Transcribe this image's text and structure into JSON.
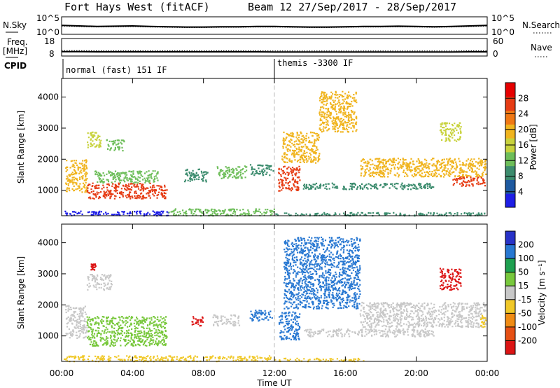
{
  "header": {
    "station": "Fort Hays West (fitACF)",
    "beam_date": "Beam 12  27/Sep/2017 - 28/Sep/2017"
  },
  "summary_panels": {
    "nsky": {
      "left_label": "N.Sky",
      "left_ticks": [
        "10^5",
        "10^0"
      ],
      "right_label": "N.Search",
      "right_ticks": [
        "10^5",
        "10^0"
      ]
    },
    "freq": {
      "left_label_1": "Freq.",
      "left_label_2": "[MHz]",
      "left_ticks": [
        "18",
        "8"
      ],
      "right_label": "Nave",
      "right_ticks": [
        "60",
        "0"
      ]
    },
    "cpid": {
      "label": "CPID",
      "segment_1": "normal (fast) 151 IF",
      "segment_2": "themis -3300 IF",
      "segment_2_start_hour": 12
    }
  },
  "axes": {
    "ylabel": "Slant Range [km]",
    "xlabel": "Time UT",
    "x_ticks": [
      "00:00",
      "04:00",
      "08:00",
      "12:00",
      "16:00",
      "20:00",
      "00:00"
    ],
    "y_ticks": [
      "1000",
      "2000",
      "3000",
      "4000"
    ]
  },
  "colorbars": {
    "power": {
      "label": "Power [dB]",
      "ticks": [
        "4",
        "8",
        "12",
        "16",
        "20",
        "24",
        "28"
      ],
      "colors": [
        "#1e1ee6",
        "#1e5aa0",
        "#3c8c6e",
        "#6ebe5a",
        "#c8d23c",
        "#f0b41e",
        "#f07814",
        "#e63c14",
        "#e60000"
      ]
    },
    "velocity": {
      "label": "Velocity [m s⁻¹]",
      "ticks": [
        "200",
        "100",
        "50",
        "15",
        "-15",
        "-50",
        "-100",
        "-200"
      ],
      "colors": [
        "#2832c8",
        "#2878d2",
        "#1ea050",
        "#78c83c",
        "#c8c8c8",
        "#f0c828",
        "#f08c14",
        "#e65014",
        "#dc1414"
      ]
    }
  },
  "chart_data": {
    "type": "heatmap",
    "x_range_hours": [
      0,
      24
    ],
    "y_range_km": [
      180,
      4600
    ],
    "time_marker_hour": 12,
    "power_regions": [
      {
        "t0": 0.1,
        "t1": 6.0,
        "r0": 200,
        "r1": 350,
        "power": 6
      },
      {
        "t0": 6.0,
        "t1": 12.0,
        "r0": 200,
        "r1": 420,
        "power": 9
      },
      {
        "t0": 12.0,
        "t1": 24.0,
        "r0": 200,
        "r1": 300,
        "power": 5
      },
      {
        "t0": 0.2,
        "t1": 1.4,
        "r0": 950,
        "r1": 2000,
        "power": 20
      },
      {
        "t0": 1.4,
        "t1": 2.2,
        "r0": 2400,
        "r1": 2900,
        "power": 14
      },
      {
        "t0": 2.5,
        "t1": 3.5,
        "r0": 2300,
        "r1": 2650,
        "power": 12
      },
      {
        "t0": 1.4,
        "t1": 5.9,
        "r0": 750,
        "r1": 1250,
        "power": 24
      },
      {
        "t0": 1.8,
        "t1": 5.4,
        "r0": 1250,
        "r1": 1650,
        "power": 14
      },
      {
        "t0": 6.9,
        "t1": 8.2,
        "r0": 1300,
        "r1": 1700,
        "power": 11
      },
      {
        "t0": 8.7,
        "t1": 10.4,
        "r0": 1400,
        "r1": 1800,
        "power": 13
      },
      {
        "t0": 10.6,
        "t1": 11.9,
        "r0": 1500,
        "r1": 1850,
        "power": 12
      },
      {
        "t0": 12.2,
        "t1": 13.4,
        "r0": 1000,
        "r1": 1800,
        "power": 22
      },
      {
        "t0": 12.4,
        "t1": 14.5,
        "r0": 1900,
        "r1": 2900,
        "power": 18
      },
      {
        "t0": 14.5,
        "t1": 16.6,
        "r0": 2900,
        "r1": 4200,
        "power": 16
      },
      {
        "t0": 13.6,
        "t1": 21.0,
        "r0": 1050,
        "r1": 1250,
        "power": 10
      },
      {
        "t0": 16.8,
        "t1": 23.9,
        "r0": 1450,
        "r1": 2050,
        "power": 22
      },
      {
        "t0": 21.3,
        "t1": 22.5,
        "r0": 2600,
        "r1": 3200,
        "power": 15
      },
      {
        "t0": 22.0,
        "t1": 23.9,
        "r0": 1150,
        "r1": 1450,
        "power": 26
      }
    ],
    "velocity_regions": [
      {
        "t0": 0.1,
        "t1": 11.8,
        "r0": 200,
        "r1": 380,
        "velocity": -40
      },
      {
        "t0": 12.0,
        "t1": 17.0,
        "r0": 200,
        "r1": 300,
        "velocity": -30
      },
      {
        "t0": 0.2,
        "t1": 1.4,
        "r0": 950,
        "r1": 2000,
        "velocity": 0
      },
      {
        "t0": 1.4,
        "t1": 2.8,
        "r0": 2500,
        "r1": 3000,
        "velocity": 0
      },
      {
        "t0": 1.6,
        "t1": 1.9,
        "r0": 3150,
        "r1": 3350,
        "velocity": -200
      },
      {
        "t0": 1.4,
        "t1": 5.9,
        "r0": 700,
        "r1": 1650,
        "velocity": 30
      },
      {
        "t0": 7.3,
        "t1": 8.0,
        "r0": 1350,
        "r1": 1650,
        "velocity": -200
      },
      {
        "t0": 8.5,
        "t1": 10.0,
        "r0": 1350,
        "r1": 1700,
        "velocity": 5
      },
      {
        "t0": 10.6,
        "t1": 11.9,
        "r0": 1500,
        "r1": 1850,
        "velocity": 150
      },
      {
        "t0": 12.2,
        "t1": 13.4,
        "r0": 900,
        "r1": 1800,
        "velocity": 200
      },
      {
        "t0": 12.5,
        "t1": 16.8,
        "r0": 1900,
        "r1": 4200,
        "velocity": 200
      },
      {
        "t0": 13.6,
        "t1": 21.0,
        "r0": 1000,
        "r1": 1250,
        "velocity": 0
      },
      {
        "t0": 16.8,
        "t1": 23.9,
        "r0": 1300,
        "r1": 2100,
        "velocity": 0
      },
      {
        "t0": 21.3,
        "t1": 22.5,
        "r0": 2500,
        "r1": 3200,
        "velocity": -200
      },
      {
        "t0": 23.5,
        "t1": 23.9,
        "r0": 1300,
        "r1": 1700,
        "velocity": -50
      }
    ],
    "nsky_level": [
      1.6,
      1.5,
      1.4,
      1.45,
      1.5,
      1.4,
      1.35,
      1.3,
      1.3,
      1.35,
      1.35,
      1.4,
      1.4,
      1.35,
      1.3,
      1.3,
      1.35,
      1.4,
      1.4,
      1.45,
      1.4,
      1.35,
      1.4,
      1.5,
      1.6
    ],
    "freq_mhz": [
      10.5,
      10.5,
      10.4,
      10.4,
      10.4,
      10.4,
      10.4,
      10.4,
      10.4,
      10.4,
      10.4,
      10.4,
      10.3,
      10.3,
      10.3,
      10.3,
      10.3,
      10.3,
      10.3,
      10.3,
      10.3,
      10.3,
      10.3,
      10.4,
      10.4
    ]
  }
}
